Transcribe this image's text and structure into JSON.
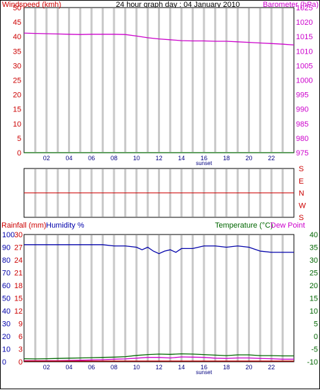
{
  "title": "24 hour graph day : 04 January 2010",
  "colors": {
    "wind": "#cc0000",
    "baro": "#cc00cc",
    "rain": "#cc0000",
    "humidity": "#0000aa",
    "temp": "#006600",
    "grid": "#c8c8c8",
    "winddir": "#cc0000"
  },
  "chart_data": [
    {
      "type": "line",
      "panel": "wind-baro",
      "ylabel_left": "Windspeed (kmh)",
      "ylabel_right": "Barometer (hPa)",
      "xlabel": "sunset",
      "x_ticks": [
        "02",
        "04",
        "06",
        "08",
        "10",
        "12",
        "14",
        "16",
        "18",
        "20",
        "22"
      ],
      "y_left_ticks": [
        "0",
        "5",
        "10",
        "15",
        "20",
        "25",
        "30",
        "35",
        "40",
        "45",
        "50"
      ],
      "y_left_range": [
        0,
        50
      ],
      "y_right_ticks": [
        "975",
        "980",
        "985",
        "990",
        "995",
        "1000",
        "1005",
        "1010",
        "1015",
        "1020",
        "1025"
      ],
      "y_right_range": [
        975,
        1025
      ],
      "x_range": [
        0,
        24
      ],
      "grid": "vertical",
      "series": [
        {
          "name": "Windspeed (kmh)",
          "axis": "left",
          "color": "#006600",
          "x": [
            0,
            24
          ],
          "values": [
            0,
            0
          ]
        },
        {
          "name": "Barometer (hPa)",
          "axis": "right",
          "color": "#cc00cc",
          "x": [
            0,
            1,
            2,
            3,
            4,
            5,
            6,
            7,
            8,
            9,
            10,
            11,
            12,
            13,
            14,
            15,
            16,
            17,
            18,
            19,
            20,
            21,
            22,
            23,
            24
          ],
          "values": [
            1016.2,
            1016.1,
            1016.0,
            1015.9,
            1015.8,
            1015.7,
            1015.8,
            1015.8,
            1015.8,
            1015.7,
            1015.2,
            1014.6,
            1014.2,
            1013.9,
            1013.6,
            1013.5,
            1013.5,
            1013.4,
            1013.4,
            1013.2,
            1013.0,
            1012.8,
            1012.6,
            1012.4,
            1012.1
          ]
        }
      ]
    },
    {
      "type": "line",
      "panel": "wind-direction",
      "y_ticks": [
        "S",
        "E",
        "N",
        "W",
        "S"
      ],
      "x_range": [
        0,
        24
      ],
      "grid": "vertical",
      "series": [
        {
          "name": "Wind direction",
          "color": "#cc0000",
          "x": [
            0,
            24
          ],
          "values": [
            2,
            2
          ]
        }
      ]
    },
    {
      "type": "line",
      "panel": "rain-hum-temp",
      "ylabel_left_1": "Rainfall (mm)",
      "ylabel_left_2": "Humidity %",
      "ylabel_right_1": "Temperature (°C)",
      "ylabel_right_2": "Dew Point",
      "xlabel": "sunset",
      "x_ticks": [
        "02",
        "04",
        "06",
        "08",
        "10",
        "12",
        "14",
        "16",
        "18",
        "20",
        "22"
      ],
      "y_humidity_ticks": [
        "0",
        "10",
        "20",
        "30",
        "40",
        "50",
        "60",
        "70",
        "80",
        "90",
        "100"
      ],
      "y_humidity_range": [
        0,
        100
      ],
      "y_rain_ticks": [
        "0",
        "3",
        "6",
        "9",
        "12",
        "15",
        "18",
        "21",
        "24",
        "27",
        "30"
      ],
      "y_rain_range": [
        0,
        30
      ],
      "y_temp_ticks": [
        "-10",
        "-5",
        "0",
        "5",
        "10",
        "15",
        "20",
        "25",
        "30",
        "35",
        "40"
      ],
      "y_temp_range": [
        -10,
        40
      ],
      "x_range": [
        0,
        24
      ],
      "grid": "vertical",
      "series": [
        {
          "name": "Humidity %",
          "axis": "humidity",
          "color": "#0000aa",
          "x": [
            0,
            1,
            2,
            3,
            4,
            5,
            6,
            7,
            8,
            9,
            10,
            10.5,
            11,
            11.5,
            12,
            12.5,
            13,
            13.5,
            14,
            15,
            16,
            17,
            18,
            19,
            20,
            21,
            22,
            23,
            24
          ],
          "values": [
            92,
            92,
            92,
            92,
            92,
            92,
            92,
            92,
            91,
            91,
            90,
            88,
            90,
            87,
            85,
            87,
            88,
            86,
            89,
            89,
            91,
            91,
            90,
            91,
            90,
            87,
            86,
            86,
            86
          ]
        },
        {
          "name": "Temperature (°C)",
          "axis": "temp",
          "color": "#006600",
          "x": [
            0,
            1,
            2,
            3,
            4,
            5,
            6,
            7,
            8,
            9,
            10,
            11,
            12,
            13,
            14,
            15,
            16,
            17,
            18,
            19,
            20,
            21,
            22,
            23,
            24
          ],
          "values": [
            -8.8,
            -8.9,
            -8.8,
            -8.7,
            -8.6,
            -8.5,
            -8.4,
            -8.3,
            -8.2,
            -8.0,
            -7.5,
            -7.2,
            -7.0,
            -7.1,
            -6.9,
            -7.0,
            -7.2,
            -7.4,
            -7.6,
            -7.3,
            -7.3,
            -7.6,
            -7.6,
            -7.7,
            -7.7
          ]
        },
        {
          "name": "Dew Point",
          "axis": "temp",
          "color": "#cc00cc",
          "x": [
            0,
            1,
            2,
            3,
            4,
            5,
            6,
            7,
            8,
            9,
            10,
            11,
            12,
            13,
            14,
            15,
            16,
            17,
            18,
            19,
            20,
            21,
            22,
            23,
            24
          ],
          "values": [
            -9.6,
            -9.6,
            -9.6,
            -9.6,
            -9.5,
            -9.4,
            -9.3,
            -9.2,
            -9.0,
            -8.9,
            -8.6,
            -8.3,
            -8.3,
            -8.5,
            -8.1,
            -8.2,
            -8.3,
            -8.6,
            -8.7,
            -8.5,
            -8.5,
            -8.7,
            -8.8,
            -9.0,
            -9.0
          ]
        },
        {
          "name": "Rainfall (mm)",
          "axis": "rain",
          "color": "#cc0000",
          "x": [
            0,
            24
          ],
          "values": [
            0,
            0
          ]
        }
      ]
    }
  ]
}
